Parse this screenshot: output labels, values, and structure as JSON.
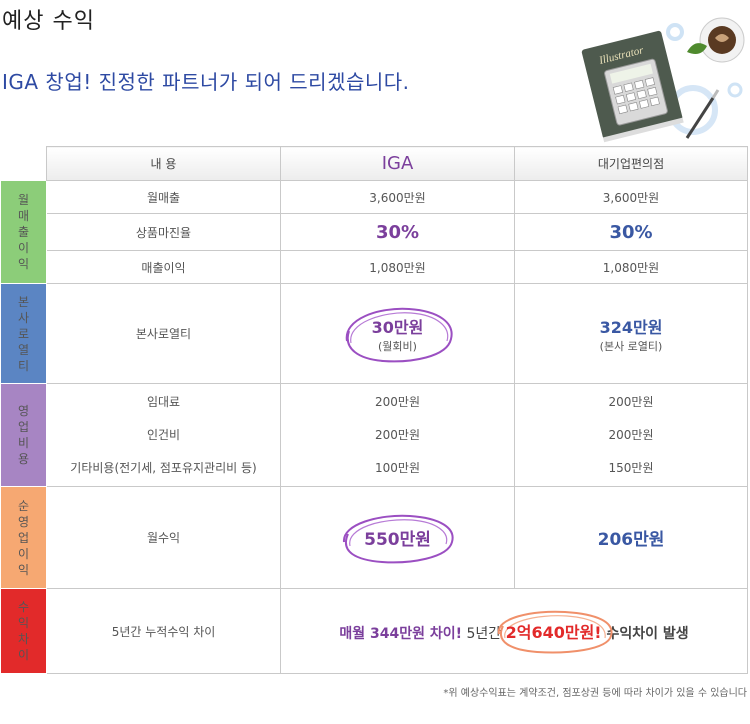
{
  "page": {
    "title": "예상 수익",
    "subtitle": "IGA 창업! 진정한 파트너가 되어 드리겠습니다.",
    "decoration_book_label": "Illustrator"
  },
  "table": {
    "headers": [
      "내 용",
      "IGA",
      "대기업편의점"
    ],
    "sections": [
      {
        "label": "월매출이익",
        "color": "#8ccd79",
        "rows": [
          {
            "item": "월매출",
            "iga": "3,600만원",
            "corp": "3,600만원"
          },
          {
            "item": "상품마진율",
            "iga": "30%",
            "corp": "30%"
          },
          {
            "item": "매출이익",
            "iga": "1,080만원",
            "corp": "1,080만원"
          }
        ]
      },
      {
        "label": "본사로열티",
        "color": "#5b85c3",
        "item": "본사로열티",
        "iga_main": "30만원",
        "iga_sub": "(월회비)",
        "corp_main": "324만원",
        "corp_sub": "(본사 로열티)"
      },
      {
        "label": "영업비용",
        "color": "#a785c3",
        "rows": [
          {
            "item": "임대료",
            "iga": "200만원",
            "corp": "200만원"
          },
          {
            "item": "인건비",
            "iga": "200만원",
            "corp": "200만원"
          },
          {
            "item": "기타비용(전기세, 점포유지관리비 등)",
            "iga": "100만원",
            "corp": "150만원"
          }
        ]
      },
      {
        "label": "순영업이익",
        "color": "#f6a872",
        "item": "월수익",
        "iga": "550만원",
        "corp": "206만원"
      },
      {
        "label": "수익차이",
        "color": "#e22a2a",
        "item": "5년간 누적수익 차이",
        "part1": "매월 344만원 차이!",
        "part2": " 5년간 ",
        "part3": "2억640만원!",
        "part4": " 수익차이 발생"
      }
    ]
  },
  "note": "*위 예상수익표는 계약조건, 점포상권 등에 따라 차이가 있을 수 있습니다"
}
